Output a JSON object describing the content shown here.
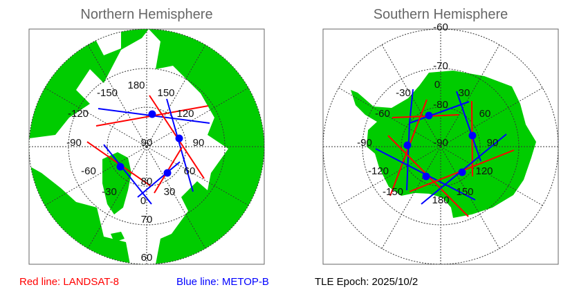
{
  "north": {
    "title": "Northern Hemisphere",
    "lon_labels": [
      "180",
      "150",
      "-150",
      "-120",
      "120",
      "-90",
      "90",
      "-60",
      "60",
      "-30",
      "30",
      "0"
    ],
    "lat_labels": [
      "90",
      "80",
      "70",
      "60"
    ]
  },
  "south": {
    "title": "Southern Hemisphere",
    "lon_labels": [
      "0",
      "-30",
      "30",
      "-60",
      "60",
      "-90",
      "90",
      "-120",
      "120",
      "-150",
      "150",
      "180"
    ],
    "lat_labels": [
      "-90",
      "-80",
      "-70",
      "-60"
    ]
  },
  "legend": {
    "red": "Red line: LANDSAT-8",
    "blue": "Blue line: METOP-B",
    "epoch": "TLE Epoch: 2025/10/2"
  },
  "colors": {
    "land": "#00cc00",
    "red_track": "#ff0000",
    "blue_track": "#0000ff",
    "title": "#666666"
  }
}
